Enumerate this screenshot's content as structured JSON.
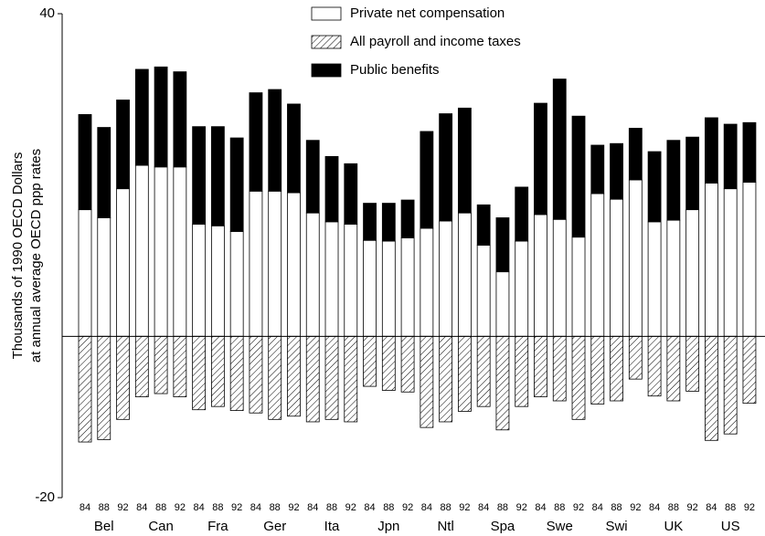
{
  "chart_data": {
    "type": "bar",
    "stacked": true,
    "ylabel": [
      "Thousands of 1990 OECD Dollars",
      "at annual average OECD ppp rates"
    ],
    "categories": [
      "84",
      "88",
      "92",
      "84",
      "88",
      "92",
      "84",
      "88",
      "92",
      "84",
      "88",
      "92",
      "84",
      "88",
      "92",
      "84",
      "88",
      "92",
      "84",
      "88",
      "92",
      "84",
      "88",
      "92",
      "84",
      "88",
      "92",
      "84",
      "88",
      "92",
      "84",
      "88",
      "92",
      "84",
      "88",
      "92"
    ],
    "groups": [
      "Bel",
      "Can",
      "Fra",
      "Ger",
      "Ita",
      "Jpn",
      "Ntl",
      "Spa",
      "Swe",
      "Swi",
      "UK",
      "US"
    ],
    "ylim": [
      -20,
      40
    ],
    "yticks": [
      -20,
      40
    ],
    "series": [
      {
        "name": "Private net compensation",
        "color": "#ffffff",
        "hatch": false,
        "values": [
          15.7,
          14.7,
          18.3,
          21.2,
          21.0,
          21.0,
          13.9,
          13.7,
          13.0,
          18.0,
          18.0,
          17.8,
          15.3,
          14.2,
          13.9,
          11.9,
          11.8,
          12.2,
          13.4,
          14.3,
          15.3,
          11.3,
          8.0,
          11.8,
          15.1,
          14.5,
          12.3,
          17.7,
          17.0,
          19.4,
          14.2,
          14.4,
          15.7,
          19.0,
          18.3,
          19.1
        ]
      },
      {
        "name": "All payroll and income taxes",
        "color": "#000000",
        "hatch": true,
        "values": [
          -13.1,
          -12.8,
          -10.3,
          -7.5,
          -7.1,
          -7.5,
          -9.1,
          -8.7,
          -9.2,
          -9.5,
          -10.3,
          -9.9,
          -10.6,
          -10.3,
          -10.6,
          -6.2,
          -6.7,
          -6.9,
          -11.3,
          -10.6,
          -9.3,
          -8.7,
          -11.6,
          -8.7,
          -7.5,
          -8.0,
          -10.3,
          -8.4,
          -8.0,
          -5.3,
          -7.4,
          -8.0,
          -6.8,
          -12.9,
          -12.1,
          -8.3
        ]
      },
      {
        "name": "Public benefits",
        "color": "#000000",
        "hatch": false,
        "values": [
          11.8,
          11.2,
          11.0,
          11.9,
          12.4,
          11.8,
          12.1,
          12.3,
          11.6,
          12.2,
          12.6,
          11.0,
          9.0,
          8.1,
          7.5,
          4.6,
          4.7,
          4.7,
          12.0,
          13.3,
          13.0,
          5.0,
          6.7,
          6.7,
          13.8,
          17.4,
          15.0,
          6.0,
          6.9,
          6.4,
          8.7,
          9.9,
          9.0,
          8.1,
          8.0,
          7.4
        ]
      }
    ]
  }
}
